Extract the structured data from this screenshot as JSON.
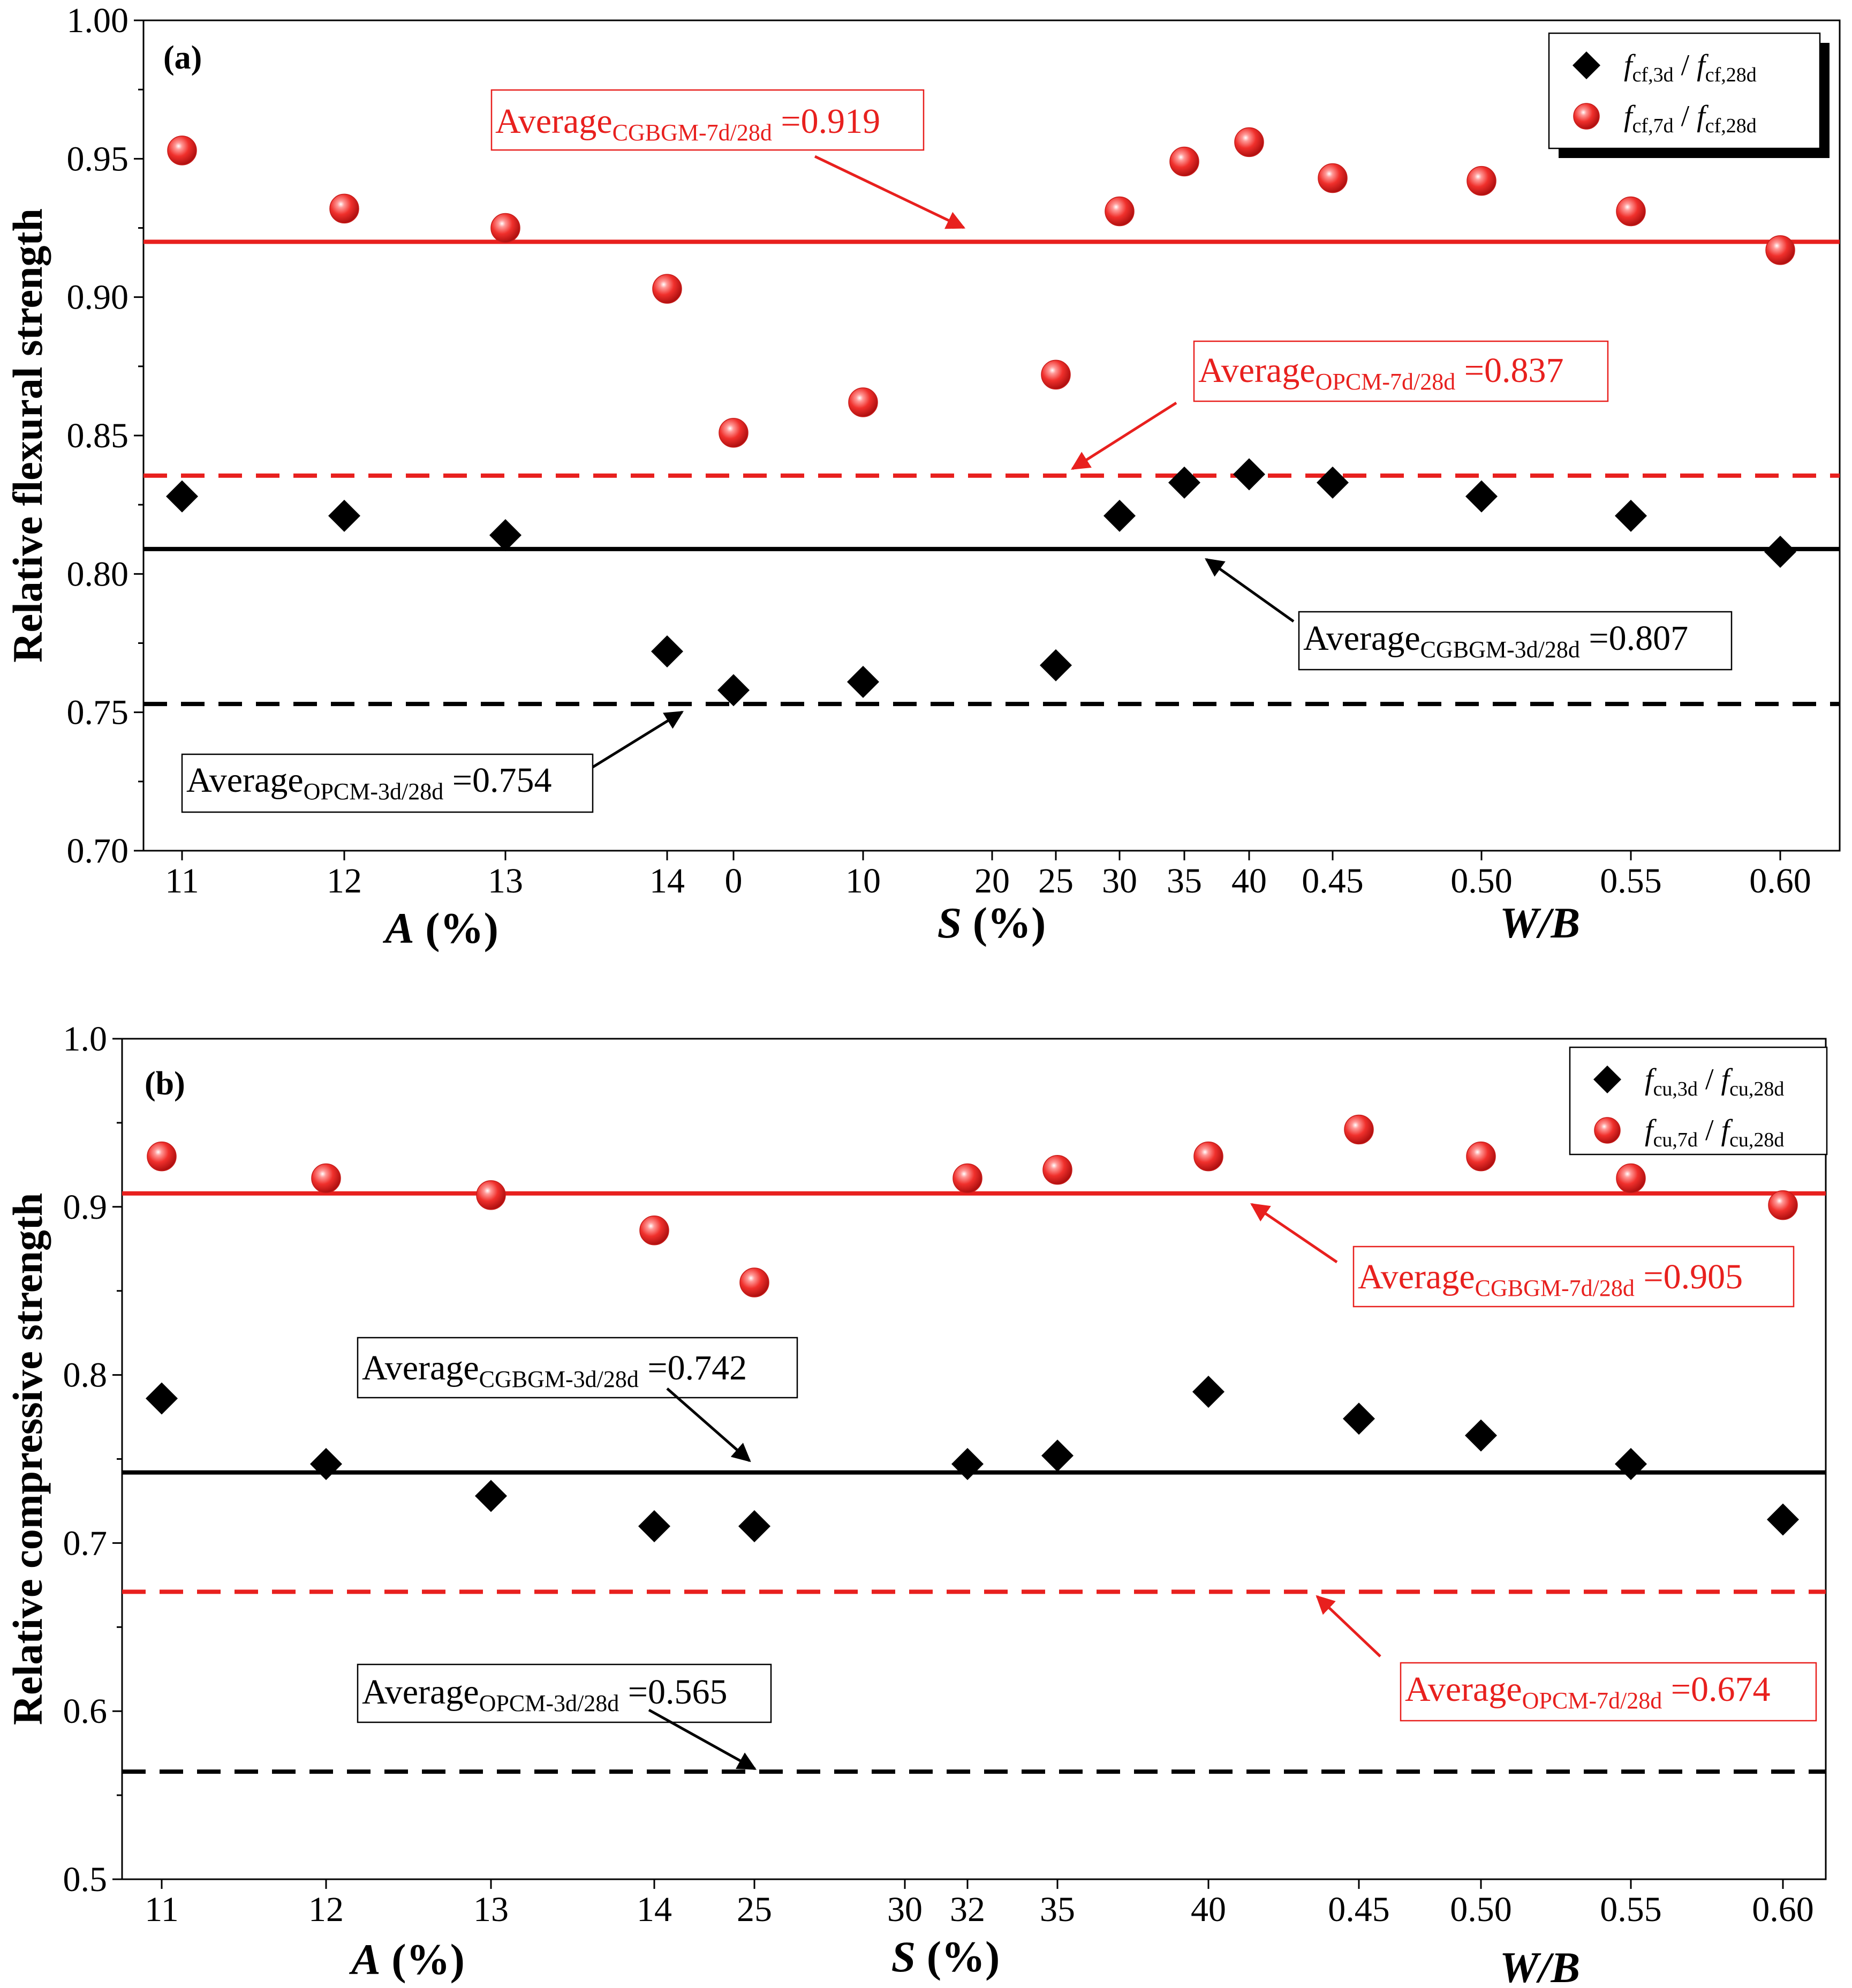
{
  "chart_data": [
    {
      "panel": "(a)",
      "type": "scatter",
      "ylabel": "Relative flexural strength",
      "ylim": [
        0.7,
        1.0
      ],
      "yticks": [
        "0.70",
        "0.75",
        "0.80",
        "0.85",
        "0.90",
        "0.95",
        "1.00"
      ],
      "x_groups": [
        {
          "name": "A (%)",
          "name_italic": "A",
          "name_rest": " (%)",
          "categories": [
            "11",
            "12",
            "13",
            "14"
          ]
        },
        {
          "name": "S (%)",
          "name_italic": "S",
          "name_rest": " (%)",
          "categories": [
            "0",
            "10",
            "20",
            "25",
            "30",
            "35",
            "40"
          ]
        },
        {
          "name": "W/B",
          "name_italic": "W/B",
          "name_rest": "",
          "categories": [
            "0.45",
            "0.50",
            "0.55",
            "0.60"
          ]
        }
      ],
      "series": [
        {
          "name": "fcf,3d / fcf,28d",
          "marker": "diamond",
          "color": "#000000",
          "points": [
            {
              "x": "11",
              "y": 0.828
            },
            {
              "x": "12",
              "y": 0.821
            },
            {
              "x": "13",
              "y": 0.814
            },
            {
              "x": "14",
              "y": 0.772
            },
            {
              "x": "0",
              "y": 0.758
            },
            {
              "x": "10",
              "y": 0.761
            },
            {
              "x": "25",
              "y": 0.767
            },
            {
              "x": "30",
              "y": 0.821
            },
            {
              "x": "35",
              "y": 0.833
            },
            {
              "x": "40",
              "y": 0.836
            },
            {
              "x": "0.45",
              "y": 0.833
            },
            {
              "x": "0.50",
              "y": 0.828
            },
            {
              "x": "0.55",
              "y": 0.821
            },
            {
              "x": "0.60",
              "y": 0.808
            }
          ]
        },
        {
          "name": "fcf,7d / fcf,28d",
          "marker": "sphere",
          "color": "#e8201e",
          "points": [
            {
              "x": "11",
              "y": 0.953
            },
            {
              "x": "12",
              "y": 0.932
            },
            {
              "x": "13",
              "y": 0.925
            },
            {
              "x": "14",
              "y": 0.903
            },
            {
              "x": "0",
              "y": 0.851
            },
            {
              "x": "10",
              "y": 0.862
            },
            {
              "x": "25",
              "y": 0.872
            },
            {
              "x": "30",
              "y": 0.931
            },
            {
              "x": "35",
              "y": 0.949
            },
            {
              "x": "40",
              "y": 0.956
            },
            {
              "x": "0.45",
              "y": 0.943
            },
            {
              "x": "0.50",
              "y": 0.942
            },
            {
              "x": "0.55",
              "y": 0.931
            },
            {
              "x": "0.60",
              "y": 0.917
            }
          ]
        }
      ],
      "legend": [
        {
          "f": "f",
          "sub1": "cf,3d",
          "sep": " / ",
          "f2": "f",
          "sub2": "cf,28d",
          "marker": "diamond"
        },
        {
          "f": "f",
          "sub1": "cf,7d",
          "sep": " / ",
          "f2": "f",
          "sub2": "cf,28d",
          "marker": "sphere"
        }
      ],
      "legend_position": "top-right",
      "reference_lines": [
        {
          "label_main": "Average",
          "label_sub": "CGBGM-7d/28d",
          "label_value": " =0.919",
          "y": 0.92,
          "color": "#e8201e",
          "style": "solid"
        },
        {
          "label_main": "Average",
          "label_sub": "OPCM-7d/28d",
          "label_value": " =0.837",
          "y": 0.8355,
          "color": "#e8201e",
          "style": "dashed"
        },
        {
          "label_main": "Average",
          "label_sub": "CGBGM-3d/28d",
          "label_value": " =0.807",
          "y": 0.809,
          "color": "#000000",
          "style": "solid"
        },
        {
          "label_main": "Average",
          "label_sub": "OPCM-3d/28d",
          "label_value": " =0.754",
          "y": 0.753,
          "color": "#000000",
          "style": "dashed"
        }
      ]
    },
    {
      "panel": "(b)",
      "type": "scatter",
      "ylabel": "Relative compressive strength",
      "ylim": [
        0.5,
        1.0
      ],
      "yticks": [
        "0.5",
        "0.6",
        "0.7",
        "0.8",
        "0.9",
        "1.0"
      ],
      "x_groups": [
        {
          "name": "A (%)",
          "name_italic": "A",
          "name_rest": " (%)",
          "categories": [
            "11",
            "12",
            "13",
            "14"
          ]
        },
        {
          "name": "S (%)",
          "name_italic": "S",
          "name_rest": " (%)",
          "categories": [
            "25",
            "30",
            "32",
            "35",
            "40"
          ]
        },
        {
          "name": "W/B",
          "name_italic": "W/B",
          "name_rest": "",
          "categories": [
            "0.45",
            "0.50",
            "0.55",
            "0.60"
          ]
        }
      ],
      "series": [
        {
          "name": "fcu,3d / fcu,28d",
          "marker": "diamond",
          "color": "#000000",
          "points": [
            {
              "x": "11",
              "y": 0.786
            },
            {
              "x": "12",
              "y": 0.747
            },
            {
              "x": "13",
              "y": 0.728
            },
            {
              "x": "14",
              "y": 0.71
            },
            {
              "x": "25",
              "y": 0.71
            },
            {
              "x": "32",
              "y": 0.747
            },
            {
              "x": "35",
              "y": 0.752
            },
            {
              "x": "40",
              "y": 0.79
            },
            {
              "x": "0.45",
              "y": 0.774
            },
            {
              "x": "0.50",
              "y": 0.764
            },
            {
              "x": "0.55",
              "y": 0.747
            },
            {
              "x": "0.60",
              "y": 0.714
            }
          ]
        },
        {
          "name": "fcu,7d / fcu,28d",
          "marker": "sphere",
          "color": "#e8201e",
          "points": [
            {
              "x": "11",
              "y": 0.93
            },
            {
              "x": "12",
              "y": 0.917
            },
            {
              "x": "13",
              "y": 0.907
            },
            {
              "x": "14",
              "y": 0.886
            },
            {
              "x": "25",
              "y": 0.855
            },
            {
              "x": "32",
              "y": 0.917
            },
            {
              "x": "35",
              "y": 0.922
            },
            {
              "x": "40",
              "y": 0.93
            },
            {
              "x": "0.45",
              "y": 0.946
            },
            {
              "x": "0.50",
              "y": 0.93
            },
            {
              "x": "0.55",
              "y": 0.917
            },
            {
              "x": "0.60",
              "y": 0.901
            }
          ]
        }
      ],
      "legend": [
        {
          "f": "f",
          "sub1": "cu,3d",
          "sep": " / ",
          "f2": "f",
          "sub2": "cu,28d",
          "marker": "diamond"
        },
        {
          "f": "f",
          "sub1": "cu,7d",
          "sep": " / ",
          "f2": "f",
          "sub2": "cu,28d",
          "marker": "sphere"
        }
      ],
      "legend_position": "top-right",
      "reference_lines": [
        {
          "label_main": "Average",
          "label_sub": "CGBGM-7d/28d",
          "label_value": " =0.905",
          "y": 0.908,
          "color": "#e8201e",
          "style": "solid"
        },
        {
          "label_main": "Average",
          "label_sub": "CGBGM-3d/28d",
          "label_value": " =0.742",
          "y": 0.742,
          "color": "#000000",
          "style": "solid"
        },
        {
          "label_main": "Average",
          "label_sub": "OPCM-7d/28d",
          "label_value": " =0.674",
          "y": 0.671,
          "color": "#e8201e",
          "style": "dashed"
        },
        {
          "label_main": "Average",
          "label_sub": "OPCM-3d/28d",
          "label_value": " =0.565",
          "y": 0.564,
          "color": "#000000",
          "style": "dashed"
        }
      ]
    }
  ]
}
